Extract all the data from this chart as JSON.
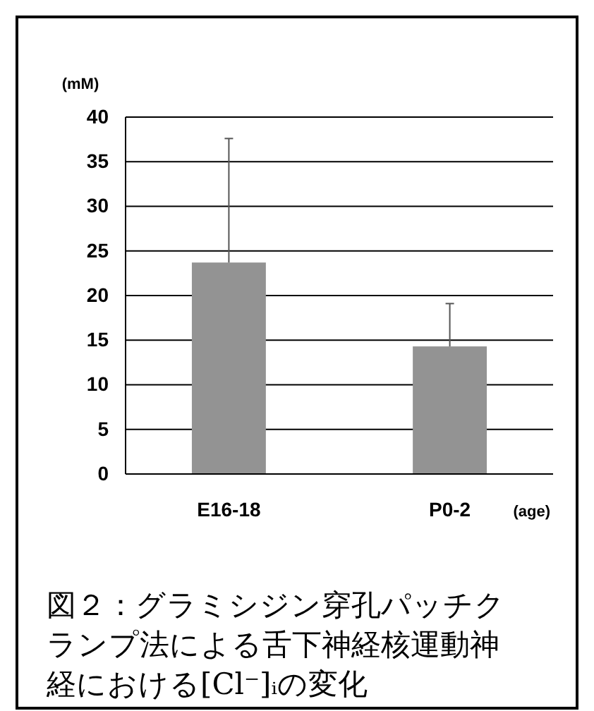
{
  "chart_data": {
    "type": "bar",
    "categories": [
      "E16-18",
      "P0-2"
    ],
    "values": [
      23.7,
      14.3
    ],
    "errors": [
      [
        23.7,
        37.6
      ],
      [
        14.3,
        19.1
      ]
    ],
    "color": "#939393",
    "ylabel": "(mM)",
    "xlabel": "(age)",
    "ylim": [
      0,
      40
    ],
    "yticks": [
      0,
      5,
      10,
      15,
      20,
      25,
      30,
      35,
      40
    ],
    "grid": "y",
    "annotations": [
      "図２：グラミシジン穿孔パッチクランプ法による舌下神経核運動神経における[Cl⁻]ᵢの変化"
    ]
  }
}
